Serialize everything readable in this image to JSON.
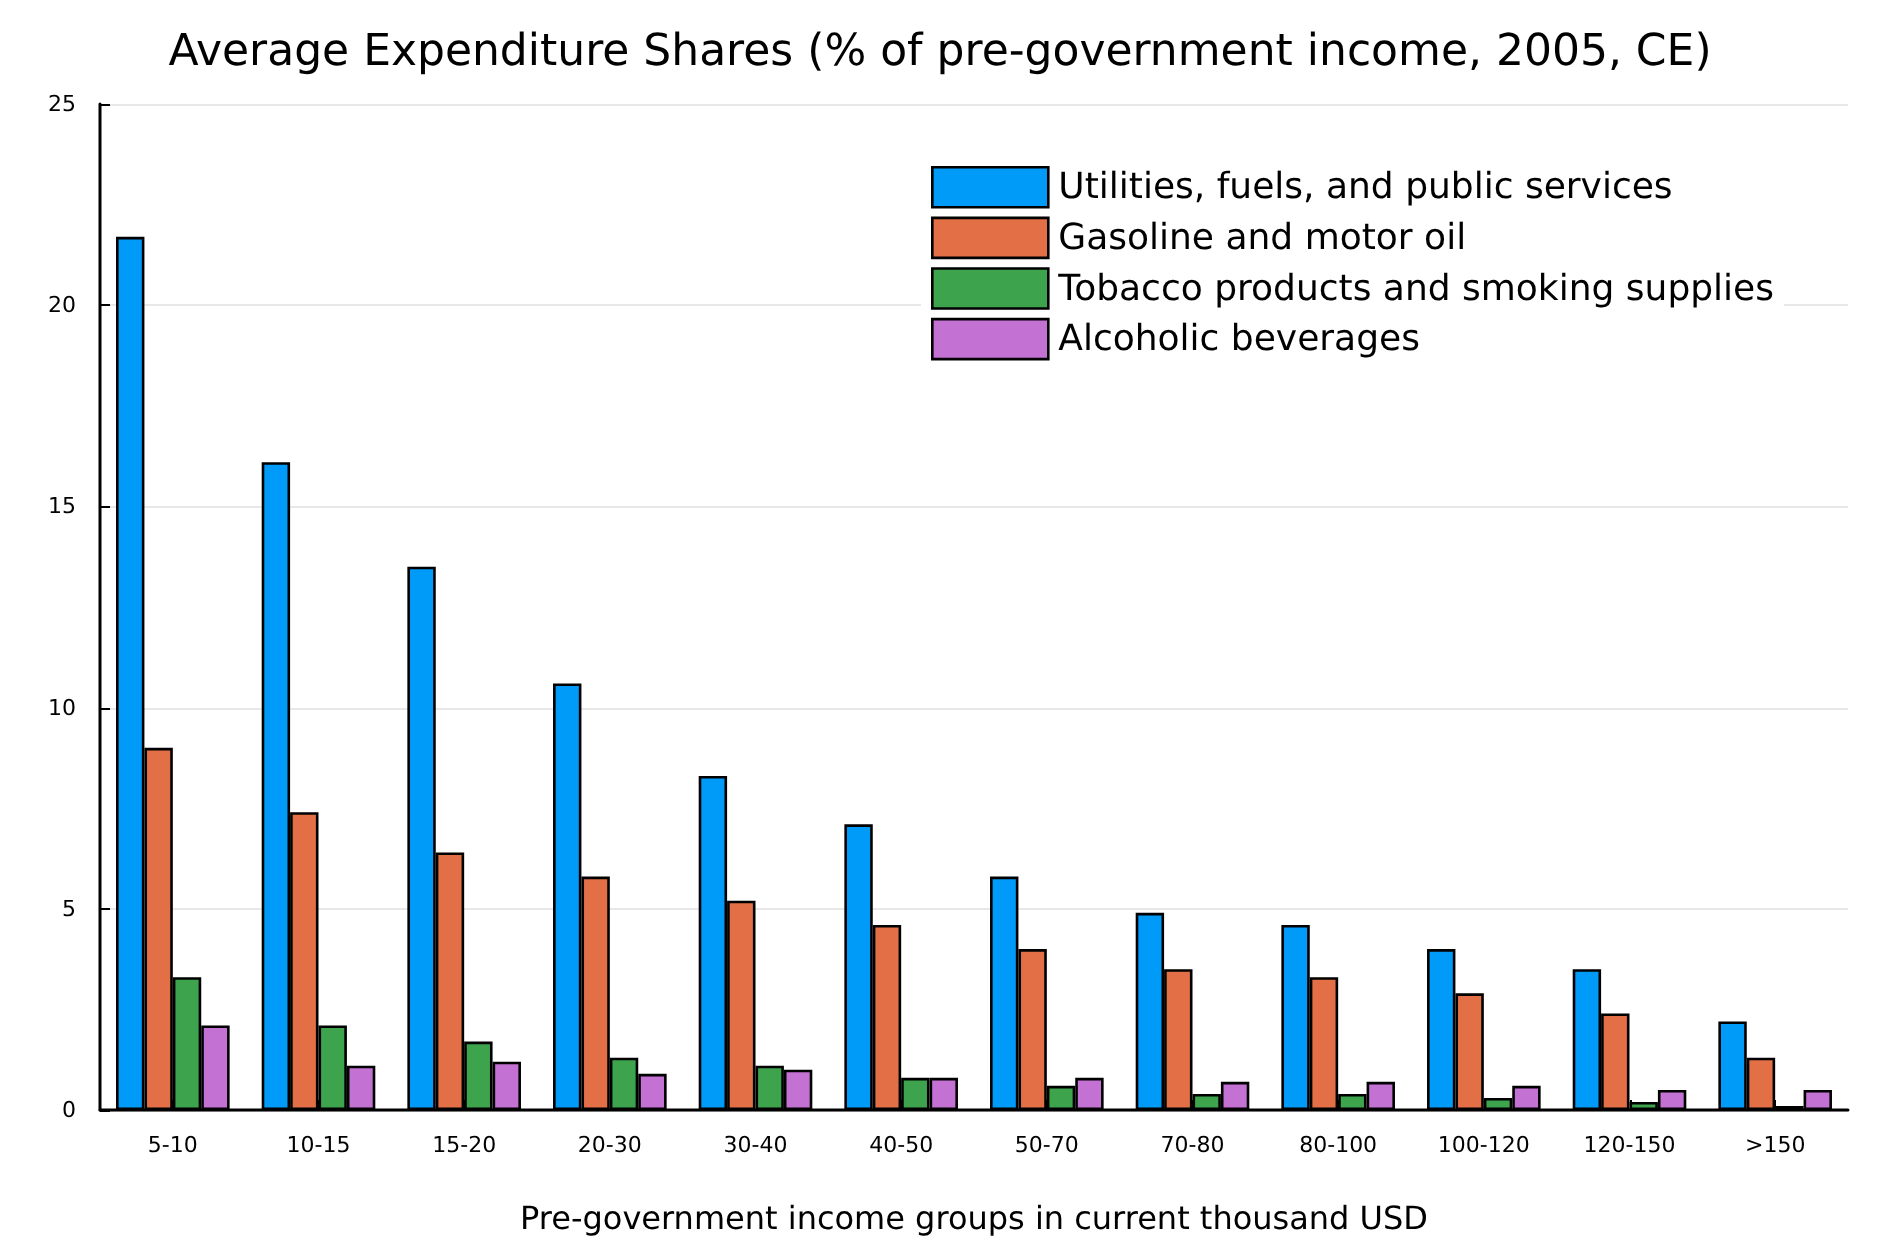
{
  "chart_data": {
    "type": "bar",
    "title": "Average Expenditure Shares (% of pre-government income, 2005, CE)",
    "xlabel": "Pre-government income groups in current thousand USD",
    "categories": [
      "5-10",
      "10-15",
      "15-20",
      "20-30",
      "30-40",
      "40-50",
      "50-70",
      "70-80",
      "80-100",
      "100-120",
      "120-150",
      ">150"
    ],
    "series": [
      {
        "name": "Utilities, fuels, and public services",
        "color": "#009af9",
        "values": [
          21.7,
          16.1,
          13.5,
          10.6,
          8.3,
          7.1,
          5.8,
          4.9,
          4.6,
          4.0,
          3.5,
          2.2
        ]
      },
      {
        "name": "Gasoline and motor oil",
        "color": "#e26f46",
        "values": [
          9.0,
          7.4,
          6.4,
          5.8,
          5.2,
          4.6,
          4.0,
          3.5,
          3.3,
          2.9,
          2.4,
          1.3
        ]
      },
      {
        "name": "Tobacco products and smoking supplies",
        "color": "#3da44d",
        "values": [
          3.3,
          2.1,
          1.7,
          1.3,
          1.1,
          0.8,
          0.6,
          0.4,
          0.4,
          0.3,
          0.2,
          0.1
        ]
      },
      {
        "name": "Alcoholic beverages",
        "color": "#c371d2",
        "values": [
          2.1,
          1.1,
          1.2,
          0.9,
          1.0,
          0.8,
          0.8,
          0.7,
          0.7,
          0.6,
          0.5,
          0.5
        ]
      }
    ],
    "ylim": [
      0,
      25
    ],
    "yticks": [
      0,
      5,
      10,
      15,
      20,
      25
    ],
    "grid": "y",
    "legend": "top right"
  }
}
